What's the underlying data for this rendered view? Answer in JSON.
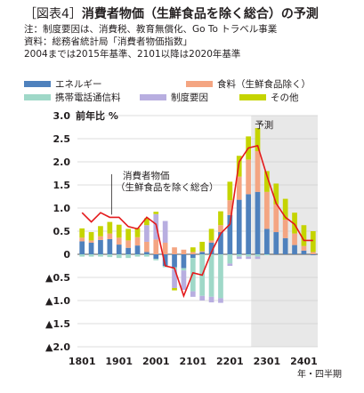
{
  "header": {
    "tag": "［図表4］",
    "title": "消費者物価（生鮮食品を除く総合）の予測",
    "notes": [
      "注：制度要因は、消費税、教育無償化、Go To トラベル事業",
      "資料：総務省統計局「消費者物価指数」",
      "2004までは2015年基準、2101以降は2020年基準"
    ]
  },
  "chart_data": {
    "type": "bar",
    "title": "",
    "ylabel": "前年比 %",
    "xlabel": "年・四半期",
    "ylim": [
      -2.0,
      3.0
    ],
    "yticks": [
      3.0,
      2.5,
      2.0,
      1.5,
      1.0,
      0.5,
      0,
      -0.5,
      -1.0,
      -1.5,
      -2.0
    ],
    "ytick_labels": [
      "3.0",
      "2.5",
      "2.0",
      "1.5",
      "1.0",
      "0.5",
      "0",
      "▲0.5",
      "▲1.0",
      "▲1.5",
      "▲2.0"
    ],
    "x_tick_labels": [
      "1801",
      "1901",
      "2001",
      "2101",
      "2201",
      "2301",
      "2401"
    ],
    "categories": [
      "1801",
      "1802",
      "1803",
      "1804",
      "1901",
      "1902",
      "1903",
      "1904",
      "2001",
      "2002",
      "2003",
      "2004",
      "2101",
      "2102",
      "2103",
      "2104",
      "2201",
      "2202",
      "2203",
      "2204",
      "2301",
      "2302",
      "2303",
      "2304",
      "2401",
      "2402"
    ],
    "forecast_start": "2204",
    "forecast_label": "予測",
    "series": [
      {
        "name": "エネルギー",
        "color": "#4f81bd",
        "values": [
          0.28,
          0.25,
          0.31,
          0.33,
          0.21,
          0.14,
          0.19,
          0.05,
          -0.1,
          -0.25,
          -0.28,
          -0.3,
          -0.08,
          0.05,
          0.25,
          0.48,
          0.85,
          1.18,
          1.3,
          1.35,
          0.55,
          0.48,
          0.35,
          0.2,
          0.08,
          -0.02
        ]
      },
      {
        "name": "食料（生鮮食品除く）",
        "color": "#f4a582",
        "values": [
          0.08,
          0.05,
          0.08,
          0.12,
          0.15,
          0.16,
          0.18,
          0.22,
          0.32,
          0.25,
          0.15,
          0.1,
          0.05,
          0.02,
          0.05,
          0.15,
          0.32,
          0.5,
          0.75,
          0.88,
          0.8,
          0.6,
          0.4,
          0.25,
          0.1,
          0.05
        ]
      },
      {
        "name": "携帯電話通信料",
        "color": "#9fd8c8",
        "values": [
          -0.05,
          -0.05,
          -0.05,
          -0.06,
          -0.08,
          -0.08,
          -0.05,
          -0.05,
          -0.03,
          -0.03,
          -0.05,
          -0.05,
          -0.72,
          -0.9,
          -0.92,
          -0.95,
          -0.2,
          -0.05,
          -0.05,
          -0.05,
          -0.02,
          0.0,
          0.0,
          0.0,
          0.0,
          0.0
        ]
      },
      {
        "name": "制度要因",
        "color": "#b8aee0",
        "values": [
          0.0,
          0.0,
          0.0,
          0.0,
          0.0,
          0.0,
          0.0,
          0.36,
          0.55,
          0.47,
          -0.4,
          -0.42,
          -0.12,
          -0.1,
          -0.12,
          -0.1,
          -0.05,
          -0.05,
          -0.05,
          -0.05,
          0.0,
          0.0,
          0.0,
          0.0,
          0.0,
          0.0
        ]
      },
      {
        "name": "その他",
        "color": "#c5d400",
        "values": [
          0.2,
          0.18,
          0.22,
          0.25,
          0.28,
          0.25,
          0.2,
          0.15,
          0.05,
          0.0,
          -0.05,
          0.0,
          0.1,
          0.2,
          0.25,
          0.3,
          0.4,
          0.45,
          0.5,
          0.5,
          0.45,
          0.45,
          0.45,
          0.45,
          0.45,
          0.45
        ]
      },
      {
        "name": "消費者物価（生鮮食品を除く総合）",
        "type": "line",
        "color": "#e41a1c",
        "values": [
          0.9,
          0.7,
          0.9,
          0.8,
          0.8,
          0.6,
          0.55,
          0.8,
          0.65,
          -0.25,
          -0.3,
          -0.9,
          -0.4,
          -0.45,
          0.05,
          0.45,
          0.65,
          2.0,
          2.3,
          2.35,
          1.7,
          1.1,
          0.8,
          0.65,
          0.3,
          0.3
        ]
      }
    ],
    "annotation": "消費者物価\n（生鮮食品を除く総合）",
    "grid": true,
    "legend_position": "top"
  }
}
